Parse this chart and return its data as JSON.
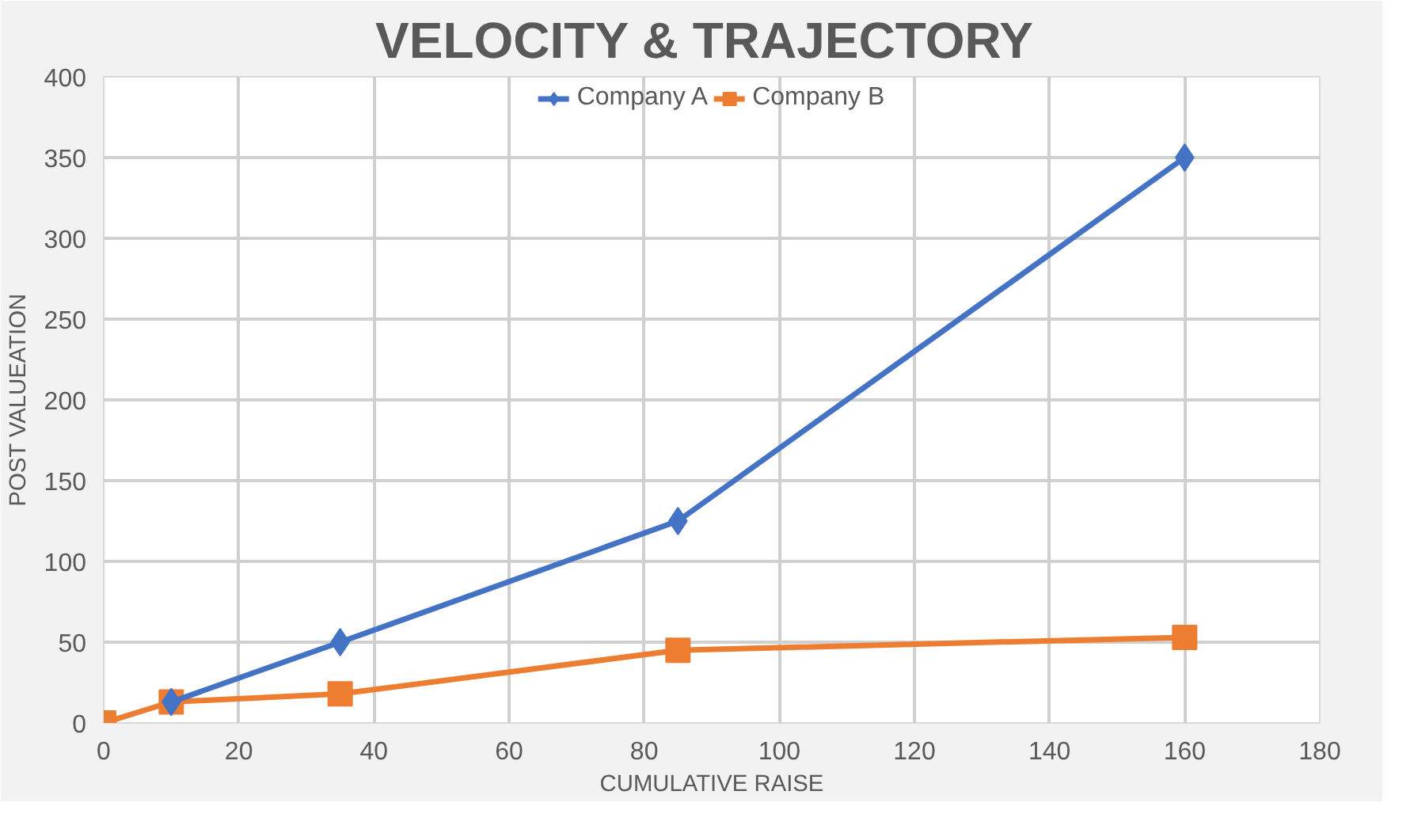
{
  "chart_data": {
    "type": "line",
    "title": "VELOCITY  & TRAJECTORY",
    "xlabel": "CUMULATIVE RAISE",
    "ylabel": "POST VALUEATION",
    "series": [
      {
        "name": "Company A",
        "color": "#4472c4",
        "marker": "diamond",
        "x": [
          10,
          35,
          85,
          160
        ],
        "values": [
          13,
          50,
          125,
          350
        ]
      },
      {
        "name": "Company B",
        "color": "#ed7d31",
        "marker": "square",
        "x": [
          0,
          10,
          35,
          85,
          160
        ],
        "values": [
          0,
          13,
          18,
          45,
          53
        ]
      }
    ],
    "xlim": [
      0,
      180
    ],
    "xticks": [
      0,
      20,
      40,
      60,
      80,
      100,
      120,
      140,
      160,
      180
    ],
    "ylim": [
      0,
      400
    ],
    "yticks": [
      0,
      50,
      100,
      150,
      200,
      250,
      300,
      350,
      400
    ],
    "grid": true,
    "legend": "top"
  }
}
